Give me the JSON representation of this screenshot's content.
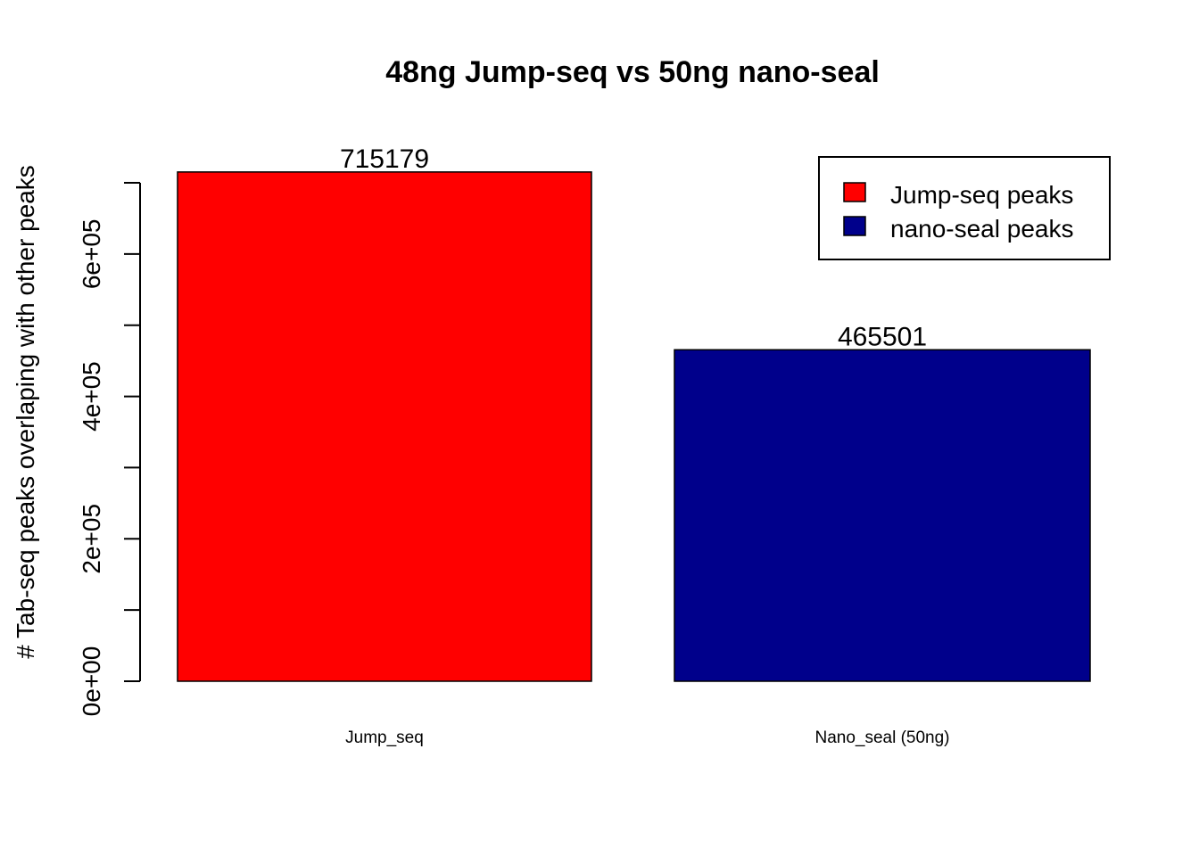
{
  "chart_data": {
    "type": "bar",
    "title": "48ng Jump-seq vs 50ng nano-seal",
    "xlabel": "",
    "ylabel": "# Tab-seq peaks overlaping with other peaks",
    "categories": [
      "Jump_seq",
      "Nano_seal (50ng)"
    ],
    "values": [
      715179,
      465501
    ],
    "data_labels": [
      "715179",
      "465501"
    ],
    "colors": [
      "#FF0000",
      "#00008B"
    ],
    "ylim": [
      0,
      700000
    ],
    "yticks": [
      0,
      100000,
      200000,
      300000,
      400000,
      500000,
      600000,
      700000
    ],
    "ytick_labels": [
      "0e+00",
      "",
      "2e+05",
      "",
      "4e+05",
      "",
      "6e+05",
      ""
    ],
    "legend": {
      "position": "top-right",
      "entries": [
        {
          "label": "Jump-seq peaks",
          "color": "#FF0000"
        },
        {
          "label": "nano-seal peaks",
          "color": "#00008B"
        }
      ]
    },
    "grid": false
  }
}
